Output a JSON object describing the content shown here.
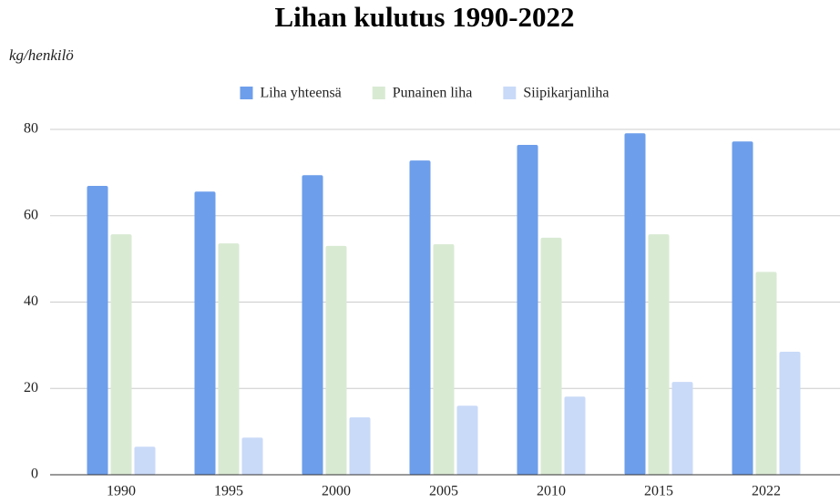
{
  "chart_data": {
    "type": "bar",
    "title": "Lihan kulutus 1990-2022",
    "y_label": "kg/henkilö",
    "categories": [
      "1990",
      "1995",
      "2000",
      "2005",
      "2010",
      "2015",
      "2022"
    ],
    "series": [
      {
        "name": "Liha yhteensä",
        "color": "#6d9eeb",
        "values": [
          66.9,
          65.6,
          69.4,
          72.8,
          76.4,
          79.1,
          77.2
        ]
      },
      {
        "name": "Punainen liha",
        "color": "#d9ead3",
        "values": [
          55.7,
          53.6,
          53.0,
          53.4,
          54.9,
          55.7,
          47.0
        ]
      },
      {
        "name": "Siipikarjanliha",
        "color": "#c9daf8",
        "values": [
          6.5,
          8.6,
          13.3,
          16.0,
          18.1,
          21.5,
          28.5
        ]
      }
    ],
    "ylim": [
      0,
      80
    ],
    "yticks": [
      0,
      20,
      40,
      60,
      80
    ],
    "grid": true,
    "legend": "top"
  }
}
